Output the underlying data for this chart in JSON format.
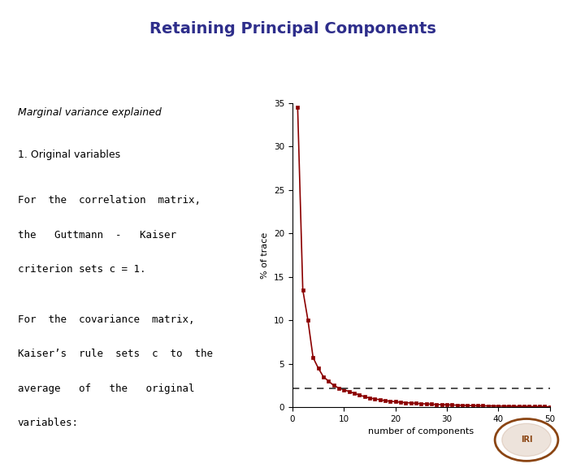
{
  "title": "Retaining Principal Components",
  "title_color": "#2E2E8B",
  "title_fontsize": 14,
  "title_fontweight": "bold",
  "bg_color": "#FFFFFF",
  "text_left_top": "Marginal variance explained",
  "text_1": "1. Original variables",
  "text_2a": "For  the  correlation  matrix,",
  "text_2b": "the   Guttmann  -   Kaiser",
  "text_2c": "criterion sets c = 1.",
  "text_3a": "For  the  covariance  matrix,",
  "text_3b": "Kaiser’s  rule  sets  c  to  the",
  "text_3c": "average   of   the   original",
  "text_3d": "variables:",
  "n_components": 50,
  "y_values": [
    34.5,
    13.5,
    10.0,
    5.7,
    4.5,
    3.5,
    3.0,
    2.5,
    2.2,
    2.0,
    1.8,
    1.6,
    1.4,
    1.2,
    1.05,
    0.95,
    0.85,
    0.75,
    0.68,
    0.62,
    0.57,
    0.52,
    0.48,
    0.44,
    0.4,
    0.37,
    0.34,
    0.31,
    0.29,
    0.27,
    0.25,
    0.23,
    0.21,
    0.2,
    0.18,
    0.17,
    0.16,
    0.15,
    0.14,
    0.13,
    0.12,
    0.11,
    0.1,
    0.09,
    0.09,
    0.08,
    0.07,
    0.07,
    0.06,
    0.05
  ],
  "line_color": "#8B0000",
  "marker": "s",
  "marker_size": 3,
  "dashed_line_y": 2.2,
  "dashed_color": "#333333",
  "xlabel": "number of components",
  "ylabel": "% of trace",
  "xlim": [
    0,
    50
  ],
  "ylim": [
    0,
    35
  ],
  "yticks": [
    0,
    5,
    10,
    15,
    20,
    25,
    30,
    35
  ],
  "xticks": [
    0,
    10,
    20,
    30,
    40,
    50
  ]
}
